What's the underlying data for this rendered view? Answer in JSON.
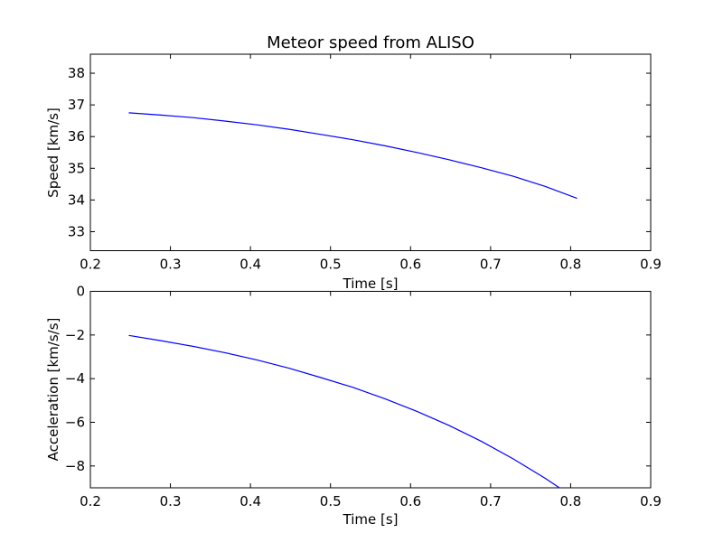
{
  "chart_data": [
    {
      "type": "line",
      "title": "Meteor speed from  ALISO",
      "xlabel": "Time [s]",
      "ylabel": "Speed [km/s]",
      "xlim": [
        0.2,
        0.9
      ],
      "ylim": [
        32.4,
        38.6
      ],
      "xticks": [
        0.2,
        0.3,
        0.4,
        0.5,
        0.6,
        0.7,
        0.8,
        0.9
      ],
      "yticks": [
        33,
        34,
        35,
        36,
        37,
        38
      ],
      "grid": false,
      "series": [
        {
          "color": "#0000ff",
          "x": [
            0.248,
            0.288,
            0.328,
            0.368,
            0.408,
            0.448,
            0.488,
            0.528,
            0.568,
            0.608,
            0.648,
            0.688,
            0.728,
            0.768,
            0.808
          ],
          "y": [
            36.75,
            36.68,
            36.6,
            36.49,
            36.37,
            36.23,
            36.07,
            35.9,
            35.71,
            35.5,
            35.27,
            35.02,
            34.75,
            34.43,
            34.05
          ]
        }
      ]
    },
    {
      "type": "line",
      "title": "",
      "xlabel": "Time [s]",
      "ylabel": "Acceleration [km/s/s]",
      "xlim": [
        0.2,
        0.9
      ],
      "ylim": [
        -9.0,
        0.0
      ],
      "xticks": [
        0.2,
        0.3,
        0.4,
        0.5,
        0.6,
        0.7,
        0.8,
        0.9
      ],
      "yticks": [
        0,
        -2,
        -4,
        -6,
        -8
      ],
      "ytick_labels": [
        "0",
        "−2",
        "−4",
        "−6",
        "−8"
      ],
      "grid": false,
      "series": [
        {
          "color": "#0000ff",
          "x": [
            0.248,
            0.288,
            0.328,
            0.368,
            0.408,
            0.448,
            0.488,
            0.528,
            0.568,
            0.608,
            0.648,
            0.688,
            0.728,
            0.768,
            0.786
          ],
          "y": [
            -2.02,
            -2.26,
            -2.52,
            -2.81,
            -3.14,
            -3.52,
            -3.95,
            -4.4,
            -4.92,
            -5.5,
            -6.14,
            -6.86,
            -7.67,
            -8.56,
            -9.0
          ]
        }
      ]
    }
  ]
}
